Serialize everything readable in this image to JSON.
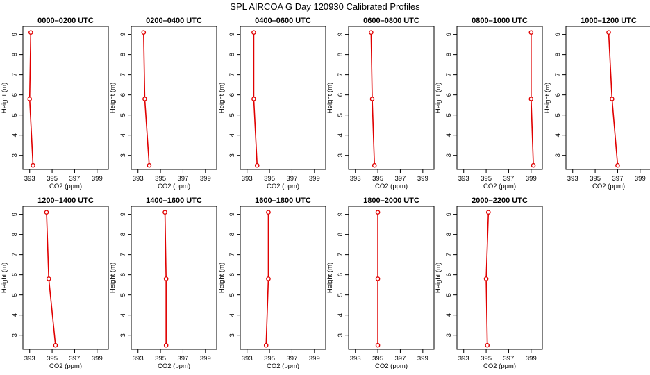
{
  "figure": {
    "title": "SPL AIRCOA G  Day 120930  Calibrated Profiles",
    "series_color": "#e00000"
  },
  "chart_data": [
    {
      "type": "line",
      "title": "0000–0200 UTC",
      "xlabel": "CO2 (ppm)",
      "ylabel": "Height (m)",
      "xlim": [
        392.4,
        400.0
      ],
      "ylim": [
        2.3,
        9.4
      ],
      "xticks": [
        393,
        395,
        397,
        399
      ],
      "xtick_labels": [
        "393",
        "395",
        "397",
        "399"
      ],
      "yticks": [
        3,
        4,
        5,
        6,
        7,
        8,
        9
      ],
      "ytick_labels": [
        "3",
        "4",
        "5",
        "6",
        "7",
        "8",
        "9"
      ],
      "series": [
        {
          "points": [
            {
              "x": 393.3,
              "y": 2.5
            },
            {
              "x": 393.0,
              "y": 5.8
            },
            {
              "x": 393.1,
              "y": 9.1
            }
          ]
        }
      ]
    },
    {
      "type": "line",
      "title": "0200–0400 UTC",
      "xlabel": "CO2 (ppm)",
      "ylabel": "Height (m)",
      "xlim": [
        392.4,
        400.0
      ],
      "ylim": [
        2.3,
        9.4
      ],
      "xticks": [
        393,
        395,
        397,
        399
      ],
      "xtick_labels": [
        "393",
        "395",
        "397",
        "399"
      ],
      "yticks": [
        3,
        4,
        5,
        6,
        7,
        8,
        9
      ],
      "ytick_labels": [
        "3",
        "4",
        "5",
        "6",
        "7",
        "8",
        "9"
      ],
      "series": [
        {
          "points": [
            {
              "x": 394.0,
              "y": 2.5
            },
            {
              "x": 393.6,
              "y": 5.8
            },
            {
              "x": 393.5,
              "y": 9.1
            }
          ]
        }
      ]
    },
    {
      "type": "line",
      "title": "0400–0600 UTC",
      "xlabel": "CO2 (ppm)",
      "ylabel": "Height (m)",
      "xlim": [
        392.4,
        400.0
      ],
      "ylim": [
        2.3,
        9.4
      ],
      "xticks": [
        393,
        395,
        397,
        399
      ],
      "xtick_labels": [
        "393",
        "395",
        "397",
        "399"
      ],
      "yticks": [
        3,
        4,
        5,
        6,
        7,
        8,
        9
      ],
      "ytick_labels": [
        "3",
        "4",
        "5",
        "6",
        "7",
        "8",
        "9"
      ],
      "series": [
        {
          "points": [
            {
              "x": 393.9,
              "y": 2.5
            },
            {
              "x": 393.6,
              "y": 5.8
            },
            {
              "x": 393.6,
              "y": 9.1
            }
          ]
        }
      ]
    },
    {
      "type": "line",
      "title": "0600–0800 UTC",
      "xlabel": "CO2 (ppm)",
      "ylabel": "Height (m)",
      "xlim": [
        392.4,
        400.0
      ],
      "ylim": [
        2.3,
        9.4
      ],
      "xticks": [
        393,
        395,
        397,
        399
      ],
      "xtick_labels": [
        "393",
        "395",
        "397",
        "399"
      ],
      "yticks": [
        3,
        4,
        5,
        6,
        7,
        8,
        9
      ],
      "ytick_labels": [
        "3",
        "4",
        "5",
        "6",
        "7",
        "8",
        "9"
      ],
      "series": [
        {
          "points": [
            {
              "x": 394.7,
              "y": 2.5
            },
            {
              "x": 394.5,
              "y": 5.8
            },
            {
              "x": 394.4,
              "y": 9.1
            }
          ]
        }
      ]
    },
    {
      "type": "line",
      "title": "0800–1000 UTC",
      "xlabel": "CO2 (ppm)",
      "ylabel": "Height (m)",
      "xlim": [
        392.4,
        400.0
      ],
      "ylim": [
        2.3,
        9.4
      ],
      "xticks": [
        393,
        395,
        397,
        399
      ],
      "xtick_labels": [
        "393",
        "395",
        "397",
        "399"
      ],
      "yticks": [
        3,
        4,
        5,
        6,
        7,
        8,
        9
      ],
      "ytick_labels": [
        "3",
        "4",
        "5",
        "6",
        "7",
        "8",
        "9"
      ],
      "series": [
        {
          "points": [
            {
              "x": 399.2,
              "y": 2.5
            },
            {
              "x": 399.0,
              "y": 5.8
            },
            {
              "x": 399.0,
              "y": 9.1
            }
          ]
        }
      ]
    },
    {
      "type": "line",
      "title": "1000–1200 UTC",
      "xlabel": "CO2 (ppm)",
      "ylabel": "Height (m)",
      "xlim": [
        392.4,
        400.0
      ],
      "ylim": [
        2.3,
        9.4
      ],
      "xticks": [
        393,
        395,
        397,
        399
      ],
      "xtick_labels": [
        "393",
        "395",
        "397",
        "399"
      ],
      "yticks": [
        3,
        4,
        5,
        6,
        7,
        8,
        9
      ],
      "ytick_labels": [
        "3",
        "4",
        "5",
        "6",
        "7",
        "8",
        "9"
      ],
      "series": [
        {
          "points": [
            {
              "x": 397.0,
              "y": 2.5
            },
            {
              "x": 396.5,
              "y": 5.8
            },
            {
              "x": 396.2,
              "y": 9.1
            }
          ]
        }
      ]
    },
    {
      "type": "line",
      "title": "1200–1400 UTC",
      "xlabel": "CO2 (ppm)",
      "ylabel": "Height (m)",
      "xlim": [
        392.4,
        400.0
      ],
      "ylim": [
        2.3,
        9.4
      ],
      "xticks": [
        393,
        395,
        397,
        399
      ],
      "xtick_labels": [
        "393",
        "395",
        "397",
        "399"
      ],
      "yticks": [
        3,
        4,
        5,
        6,
        7,
        8,
        9
      ],
      "ytick_labels": [
        "3",
        "4",
        "5",
        "6",
        "7",
        "8",
        "9"
      ],
      "series": [
        {
          "points": [
            {
              "x": 395.3,
              "y": 2.5
            },
            {
              "x": 394.7,
              "y": 5.8
            },
            {
              "x": 394.5,
              "y": 9.1
            }
          ]
        }
      ]
    },
    {
      "type": "line",
      "title": "1400–1600 UTC",
      "xlabel": "CO2 (ppm)",
      "ylabel": "Height (m)",
      "xlim": [
        392.4,
        400.0
      ],
      "ylim": [
        2.3,
        9.4
      ],
      "xticks": [
        393,
        395,
        397,
        399
      ],
      "xtick_labels": [
        "393",
        "395",
        "397",
        "399"
      ],
      "yticks": [
        3,
        4,
        5,
        6,
        7,
        8,
        9
      ],
      "ytick_labels": [
        "3",
        "4",
        "5",
        "6",
        "7",
        "8",
        "9"
      ],
      "series": [
        {
          "points": [
            {
              "x": 395.5,
              "y": 2.5
            },
            {
              "x": 395.5,
              "y": 5.8
            },
            {
              "x": 395.4,
              "y": 9.1
            }
          ]
        }
      ]
    },
    {
      "type": "line",
      "title": "1600–1800 UTC",
      "xlabel": "CO2 (ppm)",
      "ylabel": "Height (m)",
      "xlim": [
        392.4,
        400.0
      ],
      "ylim": [
        2.3,
        9.4
      ],
      "xticks": [
        393,
        395,
        397,
        399
      ],
      "xtick_labels": [
        "393",
        "395",
        "397",
        "399"
      ],
      "yticks": [
        3,
        4,
        5,
        6,
        7,
        8,
        9
      ],
      "ytick_labels": [
        "3",
        "4",
        "5",
        "6",
        "7",
        "8",
        "9"
      ],
      "series": [
        {
          "points": [
            {
              "x": 394.7,
              "y": 2.5
            },
            {
              "x": 394.9,
              "y": 5.8
            },
            {
              "x": 394.9,
              "y": 9.1
            }
          ]
        }
      ]
    },
    {
      "type": "line",
      "title": "1800–2000 UTC",
      "xlabel": "CO2 (ppm)",
      "ylabel": "Height (m)",
      "xlim": [
        392.4,
        400.0
      ],
      "ylim": [
        2.3,
        9.4
      ],
      "xticks": [
        393,
        395,
        397,
        399
      ],
      "xtick_labels": [
        "393",
        "395",
        "397",
        "399"
      ],
      "yticks": [
        3,
        4,
        5,
        6,
        7,
        8,
        9
      ],
      "ytick_labels": [
        "3",
        "4",
        "5",
        "6",
        "7",
        "8",
        "9"
      ],
      "series": [
        {
          "points": [
            {
              "x": 395.0,
              "y": 2.5
            },
            {
              "x": 395.0,
              "y": 5.8
            },
            {
              "x": 395.0,
              "y": 9.1
            }
          ]
        }
      ]
    },
    {
      "type": "line",
      "title": "2000–2200 UTC",
      "xlabel": "CO2 (ppm)",
      "ylabel": "Height (m)",
      "xlim": [
        392.4,
        400.0
      ],
      "ylim": [
        2.3,
        9.4
      ],
      "xticks": [
        393,
        395,
        397,
        399
      ],
      "xtick_labels": [
        "393",
        "395",
        "397",
        "399"
      ],
      "yticks": [
        3,
        4,
        5,
        6,
        7,
        8,
        9
      ],
      "ytick_labels": [
        "3",
        "4",
        "5",
        "6",
        "7",
        "8",
        "9"
      ],
      "series": [
        {
          "points": [
            {
              "x": 395.1,
              "y": 2.5
            },
            {
              "x": 395.0,
              "y": 5.8
            },
            {
              "x": 395.2,
              "y": 9.1
            }
          ]
        }
      ]
    }
  ]
}
